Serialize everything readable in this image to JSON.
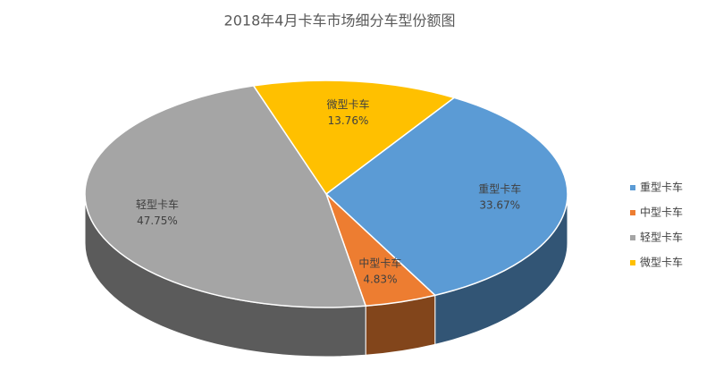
{
  "chart_data": {
    "type": "pie3d",
    "title": "2018年4月卡车市场细分车型份额图",
    "categories": [
      "重型卡车",
      "中型卡车",
      "轻型卡车",
      "微型卡车"
    ],
    "values": [
      33.67,
      4.83,
      47.75,
      13.76
    ],
    "value_labels": [
      "33.67%",
      "4.83%",
      "47.75%",
      "13.76%"
    ],
    "colors": [
      "#5b9bd5",
      "#ed7d31",
      "#a5a5a5",
      "#ffc000"
    ],
    "legend": "right"
  }
}
